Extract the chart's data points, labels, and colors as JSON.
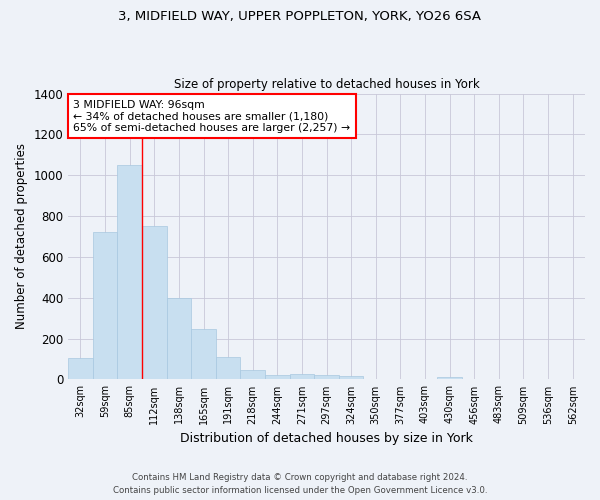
{
  "title1": "3, MIDFIELD WAY, UPPER POPPLETON, YORK, YO26 6SA",
  "title2": "Size of property relative to detached houses in York",
  "xlabel": "Distribution of detached houses by size in York",
  "ylabel": "Number of detached properties",
  "bar_color": "#c8dff0",
  "bar_edgecolor": "#a8c8e0",
  "background_color": "#eef2f8",
  "grid_color": "#c8c8d8",
  "categories": [
    "32sqm",
    "59sqm",
    "85sqm",
    "112sqm",
    "138sqm",
    "165sqm",
    "191sqm",
    "218sqm",
    "244sqm",
    "271sqm",
    "297sqm",
    "324sqm",
    "350sqm",
    "377sqm",
    "403sqm",
    "430sqm",
    "456sqm",
    "483sqm",
    "509sqm",
    "536sqm",
    "562sqm"
  ],
  "values": [
    105,
    720,
    1050,
    750,
    400,
    245,
    110,
    48,
    20,
    28,
    22,
    18,
    0,
    0,
    0,
    10,
    0,
    0,
    0,
    0,
    0
  ],
  "ylim": [
    0,
    1400
  ],
  "yticks": [
    0,
    200,
    400,
    600,
    800,
    1000,
    1200,
    1400
  ],
  "property_line_x": 2.5,
  "annotation_line1": "3 MIDFIELD WAY: 96sqm",
  "annotation_line2": "← 34% of detached houses are smaller (1,180)",
  "annotation_line3": "65% of semi-detached houses are larger (2,257) →",
  "footer1": "Contains HM Land Registry data © Crown copyright and database right 2024.",
  "footer2": "Contains public sector information licensed under the Open Government Licence v3.0."
}
